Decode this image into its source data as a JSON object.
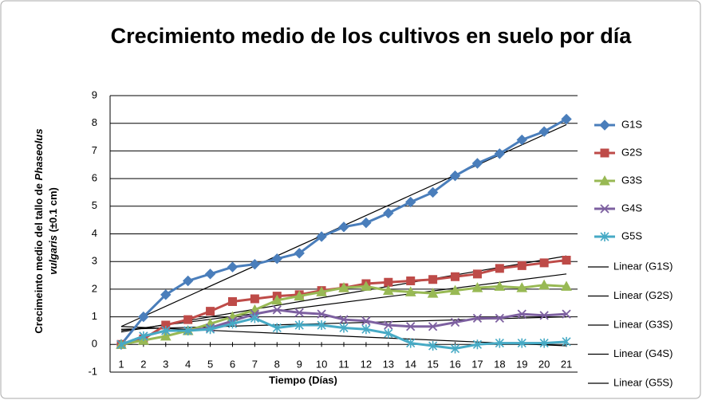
{
  "chart_data": {
    "type": "line",
    "title": "Crecimiento medio de los cultivos en suelo por día",
    "x_label": "Tiempo (Días)",
    "y_label": [
      [
        "Crecimeinto medio del tallo de ",
        "Phaseolus"
      ],
      [
        "vulgaris",
        " (±0.1 cm)"
      ]
    ],
    "x": [
      1,
      2,
      3,
      4,
      5,
      6,
      7,
      8,
      9,
      10,
      11,
      12,
      13,
      14,
      15,
      16,
      17,
      18,
      19,
      20,
      21
    ],
    "xlim": [
      0.5,
      21.5
    ],
    "xticks": [
      1,
      2,
      3,
      4,
      5,
      6,
      7,
      8,
      9,
      10,
      11,
      12,
      13,
      14,
      15,
      16,
      17,
      18,
      19,
      20,
      21
    ],
    "ylim": [
      -1,
      9
    ],
    "yticks": [
      -1,
      0,
      1,
      2,
      3,
      4,
      5,
      6,
      7,
      8,
      9
    ],
    "grid": true,
    "legend": "right",
    "series": [
      {
        "name": "G1S",
        "color": "#4a7ebb",
        "marker": "diamond",
        "values": [
          0,
          1.0,
          1.8,
          2.3,
          2.55,
          2.8,
          2.9,
          3.1,
          3.3,
          3.9,
          4.25,
          4.4,
          4.75,
          5.15,
          5.5,
          6.1,
          6.55,
          6.9,
          7.4,
          7.7,
          8.15
        ]
      },
      {
        "name": "G2S",
        "color": "#be4b48",
        "marker": "square",
        "values": [
          0,
          0.2,
          0.7,
          0.9,
          1.2,
          1.55,
          1.65,
          1.75,
          1.8,
          1.95,
          2.05,
          2.2,
          2.25,
          2.3,
          2.35,
          2.45,
          2.55,
          2.75,
          2.85,
          2.95,
          3.05
        ]
      },
      {
        "name": "G3S",
        "color": "#98b954",
        "marker": "triangle",
        "values": [
          0,
          0.15,
          0.3,
          0.5,
          0.75,
          1.0,
          1.25,
          1.6,
          1.75,
          1.9,
          2.05,
          2.1,
          1.95,
          1.9,
          1.85,
          1.95,
          2.05,
          2.1,
          2.05,
          2.15,
          2.1
        ]
      },
      {
        "name": "G4S",
        "color": "#7d60a0",
        "marker": "x",
        "values": [
          0,
          0.3,
          0.5,
          0.5,
          0.6,
          0.85,
          1.1,
          1.25,
          1.15,
          1.1,
          0.9,
          0.85,
          0.7,
          0.65,
          0.65,
          0.8,
          0.95,
          0.95,
          1.1,
          1.05,
          1.1
        ]
      },
      {
        "name": "G5S",
        "color": "#46aac5",
        "marker": "star",
        "values": [
          0,
          0.3,
          0.5,
          0.5,
          0.55,
          0.75,
          0.95,
          0.6,
          0.7,
          0.7,
          0.6,
          0.55,
          0.4,
          0.05,
          -0.05,
          -0.15,
          0.0,
          0.05,
          0.05,
          0.05,
          0.1
        ]
      }
    ],
    "trendlines": [
      {
        "name": "Linear (G1S)",
        "color": "#000000",
        "x": [
          1,
          21
        ],
        "values": [
          0.65,
          7.95
        ]
      },
      {
        "name": "Linear (G2S)",
        "color": "#000000",
        "x": [
          1,
          21
        ],
        "values": [
          0.45,
          3.2
        ]
      },
      {
        "name": "Linear (G3S)",
        "color": "#000000",
        "x": [
          1,
          21
        ],
        "values": [
          0.5,
          2.55
        ]
      },
      {
        "name": "Linear (G4S)",
        "color": "#000000",
        "x": [
          1,
          21
        ],
        "values": [
          0.55,
          1.0
        ]
      },
      {
        "name": "Linear (G5S)",
        "color": "#000000",
        "x": [
          1,
          21
        ],
        "values": [
          0.65,
          -0.05
        ]
      }
    ]
  }
}
